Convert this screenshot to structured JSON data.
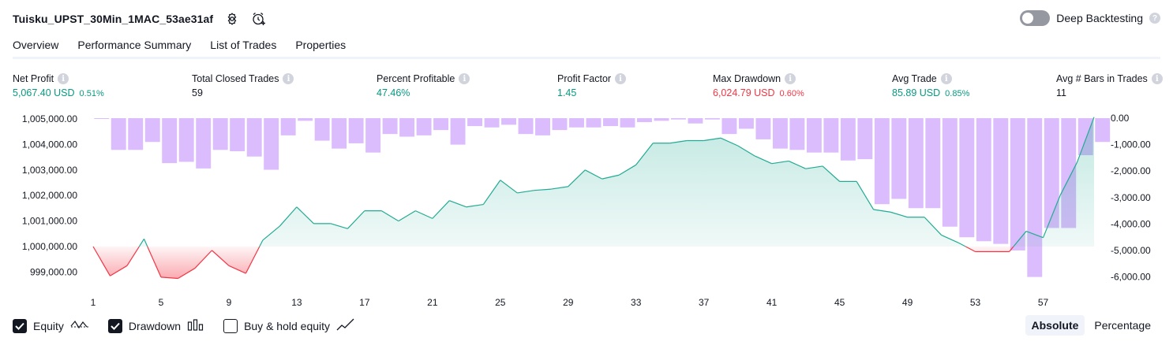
{
  "header": {
    "strategy_name": "Tuisku_UPST_30Min_1MAC_53ae31af",
    "icons": [
      "settings-icon",
      "add-alert-icon"
    ],
    "deep_backtesting_label": "Deep Backtesting",
    "deep_backtesting_enabled": false
  },
  "tabs": [
    {
      "label": "Overview",
      "active": true
    },
    {
      "label": "Performance Summary",
      "active": false
    },
    {
      "label": "List of Trades",
      "active": false
    },
    {
      "label": "Properties",
      "active": false
    }
  ],
  "metrics": [
    {
      "label": "Net Profit",
      "value": "5,067.40 USD",
      "pct": "0.51%",
      "tone": "pos"
    },
    {
      "label": "Total Closed Trades",
      "value": "59",
      "pct": "",
      "tone": "neutral"
    },
    {
      "label": "Percent Profitable",
      "value": "47.46%",
      "pct": "",
      "tone": "pos"
    },
    {
      "label": "Profit Factor",
      "value": "1.45",
      "pct": "",
      "tone": "pos"
    },
    {
      "label": "Max Drawdown",
      "value": "6,024.79 USD",
      "pct": "0.60%",
      "tone": "neg"
    },
    {
      "label": "Avg Trade",
      "value": "85.89 USD",
      "pct": "0.85%",
      "tone": "pos"
    },
    {
      "label": "Avg # Bars in Trades",
      "value": "11",
      "pct": "",
      "tone": "neutral"
    }
  ],
  "colors": {
    "positive": "#089981",
    "negative": "#f23645",
    "equity_line": "#22ab94",
    "drawdown_bar": "#d9b8fc",
    "text": "#131722"
  },
  "chart_data": {
    "type": "area",
    "x": [
      1,
      2,
      3,
      4,
      5,
      6,
      7,
      8,
      9,
      10,
      11,
      12,
      13,
      14,
      15,
      16,
      17,
      18,
      19,
      20,
      21,
      22,
      23,
      24,
      25,
      26,
      27,
      28,
      29,
      30,
      31,
      32,
      33,
      34,
      35,
      36,
      37,
      38,
      39,
      40,
      41,
      42,
      43,
      44,
      45,
      46,
      47,
      48,
      49,
      50,
      51,
      52,
      53,
      54,
      55,
      56,
      57,
      58,
      59,
      60
    ],
    "x_ticks": [
      "1",
      "5",
      "9",
      "13",
      "17",
      "21",
      "25",
      "29",
      "33",
      "37",
      "41",
      "45",
      "49",
      "53",
      "57"
    ],
    "series": [
      {
        "name": "Equity",
        "axis": "left",
        "values": [
          1000000,
          998850,
          999250,
          1000300,
          998800,
          998750,
          999150,
          999850,
          999250,
          998950,
          1000250,
          1000800,
          1001550,
          1000900,
          1000900,
          1000700,
          1001400,
          1001400,
          1001000,
          1001400,
          1001100,
          1001800,
          1001550,
          1001650,
          1002600,
          1002100,
          1002200,
          1002250,
          1002350,
          1003000,
          1002650,
          1002800,
          1003200,
          1004050,
          1004050,
          1004150,
          1004150,
          1004250,
          1003950,
          1003550,
          1003250,
          1003350,
          1003050,
          1003150,
          1002550,
          1002550,
          1001450,
          1001350,
          1001150,
          1001150,
          1000450,
          1000150,
          999800,
          999800,
          999800,
          1000600,
          1000350,
          1002000,
          1003300,
          1005070
        ]
      },
      {
        "name": "Drawdown",
        "axis": "right",
        "values": [
          0,
          -1200,
          -1200,
          -900,
          -1700,
          -1650,
          -1900,
          -1200,
          -1250,
          -1450,
          -1950,
          -650,
          -100,
          -850,
          -1150,
          -950,
          -1300,
          -600,
          -700,
          -650,
          -450,
          -1000,
          -300,
          -350,
          -250,
          -600,
          -650,
          -450,
          -350,
          -350,
          -300,
          -350,
          -150,
          -100,
          -50,
          -200,
          -50,
          -600,
          -400,
          -800,
          -1150,
          -1200,
          -1300,
          -1300,
          -1600,
          -1550,
          -3250,
          -3050,
          -3400,
          -3400,
          -4100,
          -4500,
          -4650,
          -4750,
          -5000,
          -6000,
          -4150,
          -4150,
          -1400,
          -900
        ]
      }
    ],
    "y_left_ticks": [
      "1,005,000.00",
      "1,004,000.00",
      "1,003,000.00",
      "1,002,000.00",
      "1,001,000.00",
      "1,000,000.00",
      "999,000.00"
    ],
    "y_left_range": [
      998550,
      1005030
    ],
    "y_right_ticks": [
      "0.00",
      "-1,000.00",
      "-2,000.00",
      "-3,000.00",
      "-4,000.00",
      "-5,000.00",
      "-6,000.00"
    ],
    "y_right_range": [
      -6250,
      0
    ],
    "baseline": 1000000,
    "grid": false
  },
  "legend": [
    {
      "label": "Equity",
      "checked": true,
      "icon": "equity-line-icon"
    },
    {
      "label": "Drawdown",
      "checked": true,
      "icon": "drawdown-bars-icon"
    },
    {
      "label": "Buy & hold equity",
      "checked": false,
      "icon": "buy-hold-line-icon"
    }
  ],
  "mode_buttons": [
    {
      "label": "Absolute",
      "active": true
    },
    {
      "label": "Percentage",
      "active": false
    }
  ]
}
